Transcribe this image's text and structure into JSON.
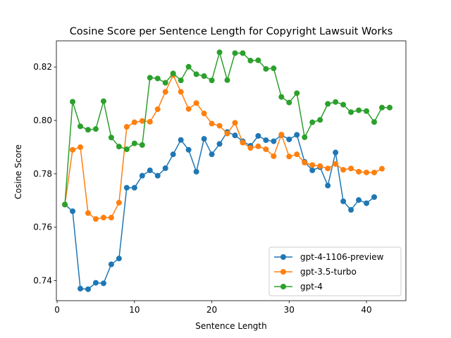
{
  "chart_data": {
    "type": "line",
    "title": "Cosine Score per Sentence Length for Copyright Lawsuit Works",
    "xlabel": "Sentence Length",
    "ylabel": "Cosine Score",
    "xlim": [
      -0.1,
      45.1
    ],
    "ylim": [
      0.7325,
      0.8298
    ],
    "x_ticks": [
      0,
      10,
      20,
      30,
      40
    ],
    "y_ticks": [
      0.74,
      0.76,
      0.78,
      0.8,
      0.82
    ],
    "y_tick_labels": [
      "0.74",
      "0.76",
      "0.78",
      "0.80",
      "0.82"
    ],
    "legend_position": "lower-right",
    "grid": false,
    "series": [
      {
        "name": "gpt-4-1106-preview",
        "color": "#1f77b4",
        "x": [
          1,
          2,
          3,
          4,
          5,
          6,
          7,
          8,
          9,
          10,
          11,
          12,
          13,
          14,
          15,
          16,
          17,
          18,
          19,
          20,
          21,
          22,
          23,
          24,
          25,
          26,
          27,
          28,
          29,
          30,
          31,
          32,
          33,
          34,
          35,
          36,
          37,
          38,
          39,
          40,
          41
        ],
        "y": [
          0.7685,
          0.766,
          0.737,
          0.7368,
          0.7392,
          0.739,
          0.7461,
          0.7483,
          0.7748,
          0.7748,
          0.7793,
          0.7813,
          0.7793,
          0.7821,
          0.7873,
          0.7927,
          0.789,
          0.7808,
          0.7931,
          0.7873,
          0.7912,
          0.7957,
          0.7944,
          0.7922,
          0.7905,
          0.7942,
          0.7926,
          0.7922,
          0.7945,
          0.7929,
          0.7946,
          0.7845,
          0.7813,
          0.7825,
          0.7756,
          0.788,
          0.7697,
          0.7665,
          0.7702,
          0.769,
          0.7713
        ]
      },
      {
        "name": "gpt-3.5-turbo",
        "color": "#ff7f0e",
        "x": [
          1,
          2,
          3,
          4,
          5,
          6,
          7,
          8,
          9,
          10,
          11,
          12,
          13,
          14,
          15,
          16,
          17,
          18,
          19,
          20,
          21,
          22,
          23,
          24,
          25,
          26,
          27,
          28,
          29,
          30,
          31,
          32,
          33,
          34,
          35,
          36,
          37,
          38,
          39,
          40,
          41,
          42
        ],
        "y": [
          0.7685,
          0.789,
          0.79,
          0.7653,
          0.7631,
          0.7636,
          0.7636,
          0.7692,
          0.7976,
          0.7993,
          0.7998,
          0.7995,
          0.8042,
          0.8107,
          0.817,
          0.8107,
          0.8043,
          0.8065,
          0.8026,
          0.7988,
          0.798,
          0.7951,
          0.7991,
          0.7917,
          0.7897,
          0.7903,
          0.7892,
          0.7866,
          0.7947,
          0.7865,
          0.7873,
          0.7842,
          0.7833,
          0.7829,
          0.782,
          0.7837,
          0.7815,
          0.782,
          0.7808,
          0.7805,
          0.7805,
          0.7819
        ]
      },
      {
        "name": "gpt-4",
        "color": "#2ca02c",
        "x": [
          1,
          2,
          3,
          4,
          5,
          6,
          7,
          8,
          9,
          10,
          11,
          12,
          13,
          14,
          15,
          16,
          17,
          18,
          19,
          20,
          21,
          22,
          23,
          24,
          25,
          26,
          27,
          28,
          29,
          30,
          31,
          32,
          33,
          34,
          35,
          36,
          37,
          38,
          39,
          40,
          41,
          42,
          43
        ],
        "y": [
          0.7685,
          0.807,
          0.7978,
          0.7965,
          0.7968,
          0.8072,
          0.7936,
          0.7902,
          0.7892,
          0.7914,
          0.7908,
          0.816,
          0.8157,
          0.8141,
          0.8176,
          0.815,
          0.8201,
          0.8173,
          0.8166,
          0.815,
          0.8255,
          0.8151,
          0.8252,
          0.8252,
          0.8224,
          0.8225,
          0.8193,
          0.8195,
          0.8088,
          0.8067,
          0.8102,
          0.7937,
          0.7993,
          0.8002,
          0.8062,
          0.8069,
          0.8059,
          0.8031,
          0.8038,
          0.8035,
          0.7994,
          0.8048,
          0.8048
        ]
      }
    ]
  }
}
